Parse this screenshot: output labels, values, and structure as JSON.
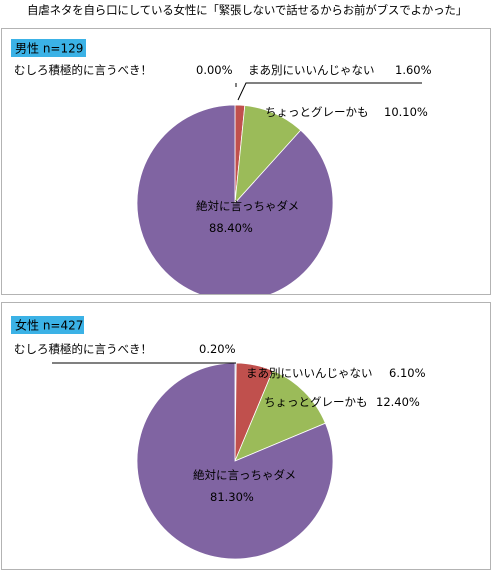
{
  "page": {
    "title": "自虐ネタを自ら口にしている女性に「緊張しないで話せるからお前がブスでよかった」"
  },
  "colors": {
    "badge_bg": "#3bb2e6",
    "slice_red": "#c0504d",
    "slice_green": "#9bbb59",
    "slice_purple": "#8064a2",
    "panel_border": "#b3b3b3"
  },
  "chart_data": [
    {
      "type": "pie",
      "badge": "男性 n=129",
      "categories": [
        "むしろ積極的に言うべき！",
        "まあ別にいいんじゃない",
        "ちょっとグレーかも",
        "絶対に言っちゃダメ"
      ],
      "values": [
        0.0,
        1.6,
        10.1,
        88.4
      ],
      "value_labels": [
        "0.00%",
        "1.60%",
        "10.10%",
        "88.40%"
      ],
      "colors": [
        "#4f81bd",
        "#c0504d",
        "#9bbb59",
        "#8064a2"
      ]
    },
    {
      "type": "pie",
      "badge": "女性 n=427",
      "categories": [
        "むしろ積極的に言うべき！",
        "まあ別にいいんじゃない",
        "ちょっとグレーかも",
        "絶対に言っちゃダメ"
      ],
      "values": [
        0.2,
        6.1,
        12.4,
        81.3
      ],
      "value_labels": [
        "0.20%",
        "6.10%",
        "12.40%",
        "81.30%"
      ],
      "colors": [
        "#4f81bd",
        "#c0504d",
        "#9bbb59",
        "#8064a2"
      ]
    }
  ]
}
